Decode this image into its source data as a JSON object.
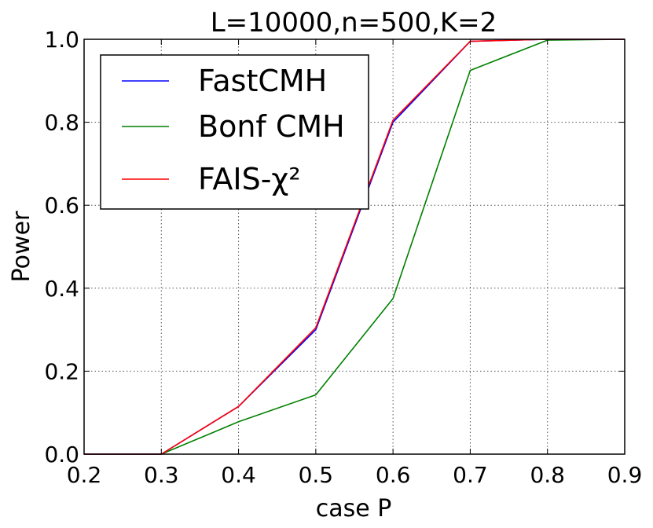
{
  "chart_data": {
    "type": "line",
    "title": "L=10000,n=500,K=2",
    "xlabel": "case P",
    "ylabel": "Power",
    "xlim": [
      0.2,
      0.9
    ],
    "ylim": [
      0.0,
      1.0
    ],
    "xticks": [
      "0.2",
      "0.3",
      "0.4",
      "0.5",
      "0.6",
      "0.7",
      "0.8",
      "0.9"
    ],
    "yticks": [
      "0.0",
      "0.2",
      "0.4",
      "0.6",
      "0.8",
      "1.0"
    ],
    "grid": true,
    "legend_position": "top-left",
    "x": [
      0.2,
      0.3,
      0.4,
      0.5,
      0.6,
      0.7,
      0.8,
      0.9
    ],
    "series": [
      {
        "name": "FastCMH",
        "color": "#0000ff",
        "values": [
          0.0,
          0.0,
          0.115,
          0.3,
          0.8,
          0.995,
          1.0,
          1.0
        ]
      },
      {
        "name": "Bonf CMH",
        "color": "#008000",
        "values": [
          0.0,
          0.0,
          0.078,
          0.143,
          0.375,
          0.925,
          0.998,
          1.0
        ]
      },
      {
        "name": "FAIS-χ²",
        "color": "#ff0000",
        "values": [
          0.0,
          0.0,
          0.115,
          0.305,
          0.805,
          0.995,
          1.0,
          1.0
        ]
      }
    ]
  }
}
